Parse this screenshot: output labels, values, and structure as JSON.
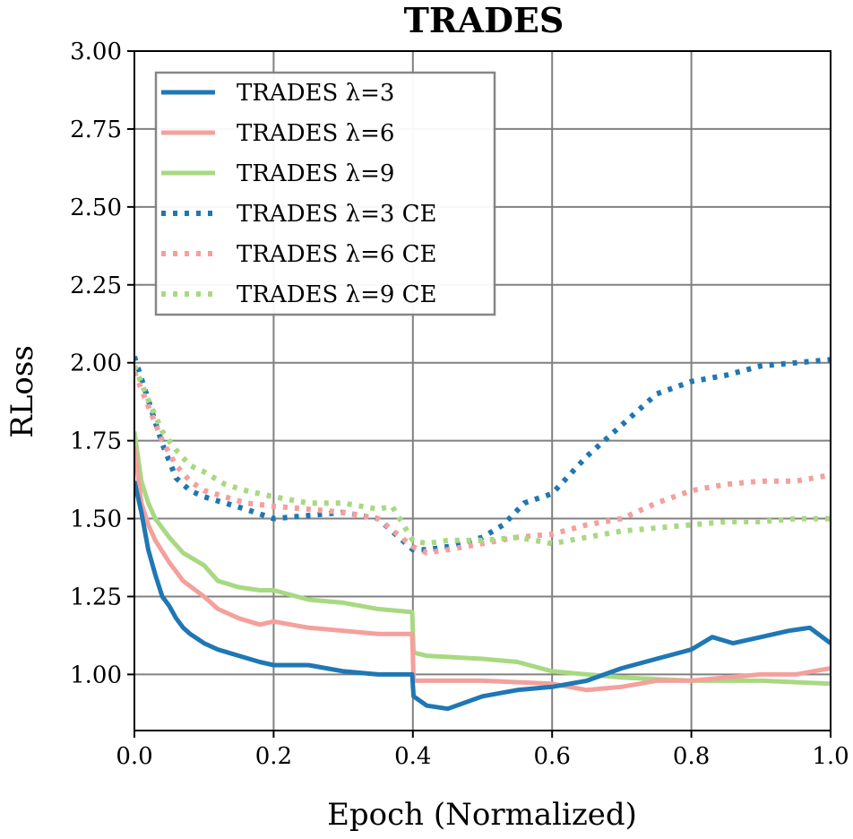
{
  "chart_data": {
    "type": "line",
    "title": "TRADES",
    "xlabel": "Epoch (Normalized)",
    "ylabel": "RLoss",
    "xlim": [
      0,
      1
    ],
    "ylim": [
      0.82,
      3.0
    ],
    "xticks": [
      "0.0",
      "0.2",
      "0.4",
      "0.6",
      "0.8",
      "1.0"
    ],
    "yticks": [
      "1.00",
      "1.25",
      "1.50",
      "1.75",
      "2.00",
      "2.25",
      "2.50",
      "2.75",
      "3.00"
    ],
    "grid": true,
    "legend_position": "top-left",
    "colors": {
      "lambda3": "#1f77b4",
      "lambda6": "#f4a09c",
      "lambda9": "#a8d982",
      "grid": "#808080"
    },
    "series": [
      {
        "name": "TRADES λ=3",
        "color": "#1f77b4",
        "style": "solid",
        "x": [
          0.0,
          0.01,
          0.02,
          0.03,
          0.04,
          0.05,
          0.06,
          0.07,
          0.08,
          0.1,
          0.12,
          0.15,
          0.18,
          0.2,
          0.25,
          0.3,
          0.35,
          0.399,
          0.401,
          0.42,
          0.45,
          0.5,
          0.55,
          0.6,
          0.65,
          0.7,
          0.75,
          0.8,
          0.83,
          0.86,
          0.9,
          0.94,
          0.97,
          1.0
        ],
        "y": [
          1.62,
          1.52,
          1.4,
          1.32,
          1.25,
          1.22,
          1.18,
          1.15,
          1.13,
          1.1,
          1.08,
          1.06,
          1.04,
          1.03,
          1.03,
          1.01,
          1.0,
          1.0,
          0.93,
          0.9,
          0.89,
          0.93,
          0.95,
          0.96,
          0.98,
          1.02,
          1.05,
          1.08,
          1.12,
          1.1,
          1.12,
          1.14,
          1.15,
          1.1
        ]
      },
      {
        "name": "TRADES λ=6",
        "color": "#f4a09c",
        "style": "solid",
        "x": [
          0.0,
          0.01,
          0.02,
          0.03,
          0.05,
          0.07,
          0.1,
          0.12,
          0.15,
          0.18,
          0.2,
          0.25,
          0.3,
          0.35,
          0.399,
          0.401,
          0.42,
          0.5,
          0.6,
          0.65,
          0.7,
          0.75,
          0.8,
          0.85,
          0.9,
          0.95,
          1.0
        ],
        "y": [
          1.73,
          1.55,
          1.48,
          1.43,
          1.36,
          1.3,
          1.25,
          1.21,
          1.18,
          1.16,
          1.17,
          1.15,
          1.14,
          1.13,
          1.13,
          0.98,
          0.98,
          0.98,
          0.97,
          0.95,
          0.96,
          0.98,
          0.98,
          0.99,
          1.0,
          1.0,
          1.02
        ]
      },
      {
        "name": "TRADES λ=9",
        "color": "#a8d982",
        "style": "solid",
        "x": [
          0.0,
          0.01,
          0.02,
          0.03,
          0.05,
          0.07,
          0.1,
          0.12,
          0.15,
          0.18,
          0.2,
          0.25,
          0.3,
          0.35,
          0.399,
          0.401,
          0.42,
          0.5,
          0.55,
          0.6,
          0.65,
          0.7,
          0.8,
          0.9,
          1.0
        ],
        "y": [
          1.78,
          1.62,
          1.55,
          1.5,
          1.44,
          1.39,
          1.35,
          1.3,
          1.28,
          1.27,
          1.27,
          1.24,
          1.23,
          1.21,
          1.2,
          1.07,
          1.06,
          1.05,
          1.04,
          1.01,
          1.0,
          0.99,
          0.98,
          0.98,
          0.97
        ]
      },
      {
        "name": "TRADES λ=3 CE",
        "color": "#1f77b4",
        "style": "dotted",
        "x": [
          0.0,
          0.02,
          0.04,
          0.06,
          0.08,
          0.1,
          0.13,
          0.16,
          0.2,
          0.25,
          0.3,
          0.35,
          0.4,
          0.42,
          0.45,
          0.5,
          0.53,
          0.56,
          0.6,
          0.65,
          0.7,
          0.75,
          0.8,
          0.85,
          0.9,
          0.95,
          1.0
        ],
        "y": [
          2.02,
          1.88,
          1.74,
          1.63,
          1.59,
          1.57,
          1.55,
          1.53,
          1.5,
          1.51,
          1.52,
          1.5,
          1.4,
          1.4,
          1.41,
          1.44,
          1.48,
          1.55,
          1.58,
          1.7,
          1.8,
          1.9,
          1.94,
          1.96,
          1.99,
          2.0,
          2.01
        ]
      },
      {
        "name": "TRADES λ=6 CE",
        "color": "#f4a09c",
        "style": "dotted",
        "x": [
          0.0,
          0.02,
          0.04,
          0.06,
          0.08,
          0.1,
          0.13,
          0.16,
          0.2,
          0.25,
          0.3,
          0.35,
          0.4,
          0.42,
          0.45,
          0.5,
          0.55,
          0.6,
          0.65,
          0.7,
          0.75,
          0.8,
          0.85,
          0.9,
          0.95,
          1.0
        ],
        "y": [
          1.97,
          1.86,
          1.75,
          1.67,
          1.62,
          1.59,
          1.57,
          1.55,
          1.54,
          1.53,
          1.52,
          1.5,
          1.41,
          1.39,
          1.4,
          1.42,
          1.44,
          1.45,
          1.48,
          1.5,
          1.55,
          1.59,
          1.61,
          1.62,
          1.62,
          1.64
        ]
      },
      {
        "name": "TRADES λ=9 CE",
        "color": "#a8d982",
        "style": "dotted",
        "x": [
          0.0,
          0.02,
          0.04,
          0.06,
          0.08,
          0.1,
          0.13,
          0.16,
          0.2,
          0.25,
          0.3,
          0.35,
          0.37,
          0.4,
          0.42,
          0.45,
          0.5,
          0.55,
          0.6,
          0.65,
          0.7,
          0.75,
          0.8,
          0.85,
          0.9,
          0.95,
          1.0
        ],
        "y": [
          1.99,
          1.88,
          1.78,
          1.72,
          1.67,
          1.65,
          1.61,
          1.59,
          1.57,
          1.55,
          1.55,
          1.53,
          1.54,
          1.43,
          1.42,
          1.43,
          1.43,
          1.44,
          1.42,
          1.44,
          1.46,
          1.47,
          1.48,
          1.49,
          1.49,
          1.5,
          1.5
        ]
      }
    ]
  }
}
